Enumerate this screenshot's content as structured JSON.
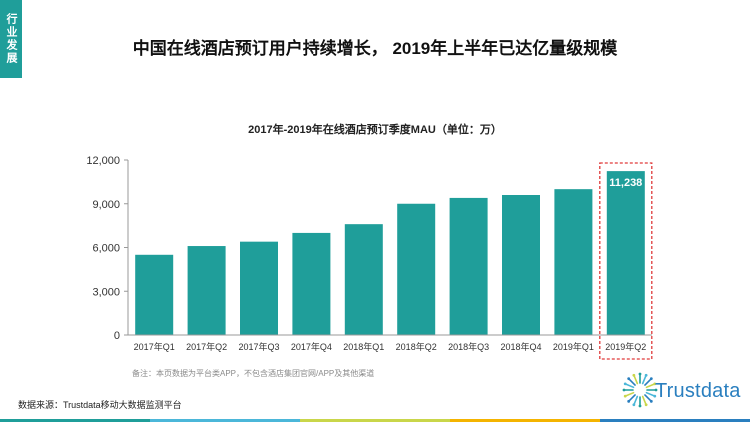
{
  "side_tab": "行业发展",
  "page_title": "中国在线酒店预订用户持续增长， 2019年上半年已达亿量级规模",
  "note": "备注：本页数据为平台类APP，不包含酒店集团官网/APP及其他渠道",
  "source": "数据来源：Trustdata移动大数据监测平台",
  "logo_text": "Trustdata",
  "colors": {
    "bar": "#1f9e9a",
    "accent_box": "#e03a3a",
    "tab": "#1f9e9a",
    "bottom_bar": [
      "#1f9e9a",
      "#4bb7d9",
      "#c9d64a",
      "#f4b400",
      "#2a7fbf"
    ]
  },
  "chart_data": {
    "type": "bar",
    "title": "2017年-2019年在线酒店预订季度MAU（单位：万）",
    "categories": [
      "2017年Q1",
      "2017年Q2",
      "2017年Q3",
      "2017年Q4",
      "2018年Q1",
      "2018年Q2",
      "2018年Q3",
      "2018年Q4",
      "2019年Q1",
      "2019年Q2"
    ],
    "values": [
      5500,
      6100,
      6400,
      7000,
      7600,
      9000,
      9400,
      9600,
      10000,
      11238
    ],
    "data_labels": {
      "2019年Q2": "11,238"
    },
    "highlight": "2019年Q2",
    "yticks": [
      "0",
      "3,000",
      "6,000",
      "9,000",
      "12,000"
    ],
    "ylim": [
      0,
      12000
    ],
    "xlabel": "",
    "ylabel": ""
  }
}
